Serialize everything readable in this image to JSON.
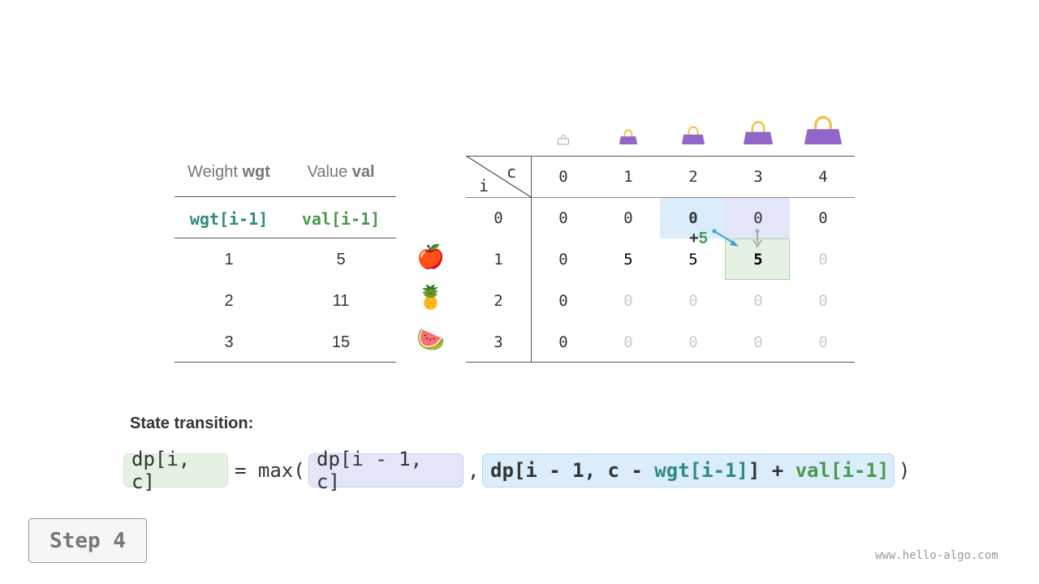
{
  "items_table": {
    "headers": [
      {
        "plain": "Weight ",
        "bold": "wgt"
      },
      {
        "plain": "Value ",
        "bold": "val"
      }
    ],
    "subheaders": [
      "wgt[i-1]",
      "val[i-1]"
    ],
    "rows": [
      {
        "wgt": "1",
        "val": "5",
        "item": "apple"
      },
      {
        "wgt": "2",
        "val": "11",
        "item": "pineapple"
      },
      {
        "wgt": "3",
        "val": "15",
        "item": "watermelon"
      }
    ],
    "item_emojis": [
      "🍎",
      "🍍",
      "🍉"
    ]
  },
  "dp_table": {
    "corner_col_label": "c",
    "corner_row_label": "i",
    "col_headers": [
      "0",
      "1",
      "2",
      "3",
      "4"
    ],
    "row_headers": [
      "0",
      "1",
      "2",
      "3"
    ],
    "cells": [
      [
        "0",
        "0",
        "0",
        "0",
        "0"
      ],
      [
        "0",
        "5",
        "5",
        "5",
        "0"
      ],
      [
        "0",
        "0",
        "0",
        "0",
        "0"
      ],
      [
        "0",
        "0",
        "0",
        "0",
        "0"
      ]
    ],
    "computed": [
      [
        true,
        true,
        true,
        true,
        true
      ],
      [
        true,
        true,
        true,
        true,
        false
      ],
      [
        true,
        false,
        false,
        false,
        false
      ],
      [
        true,
        false,
        false,
        false,
        false
      ]
    ],
    "highlight": {
      "current": [
        1,
        3
      ],
      "skip_item": [
        0,
        3
      ],
      "take_item": [
        0,
        2
      ]
    },
    "arrow_label": {
      "plus": "+",
      "value": "5"
    },
    "bag_icons": [
      "bag-empty-icon",
      "bag-icon",
      "bag-icon",
      "bag-icon",
      "bag-icon"
    ]
  },
  "formula": {
    "title": "State transition:",
    "lhs": "dp[i, c]",
    "eq": "= max(",
    "opt1": "dp[i - 1, c]",
    "comma": ",",
    "opt2_a": "dp[i - 1, c - ",
    "opt2_wgt": "wgt[i-1]",
    "opt2_b": "] + ",
    "opt2_val": "val[i-1]",
    "close": ")"
  },
  "step_button": "Step 4",
  "watermark": "www.hello-algo.com",
  "colors": {
    "green_box": "#e5f2e3",
    "purple_box": "#e3e5f8",
    "blue_box": "#dbecfa",
    "wgt": "#2e8b80",
    "val": "#4a9a4a",
    "bag": "#9166c8"
  }
}
